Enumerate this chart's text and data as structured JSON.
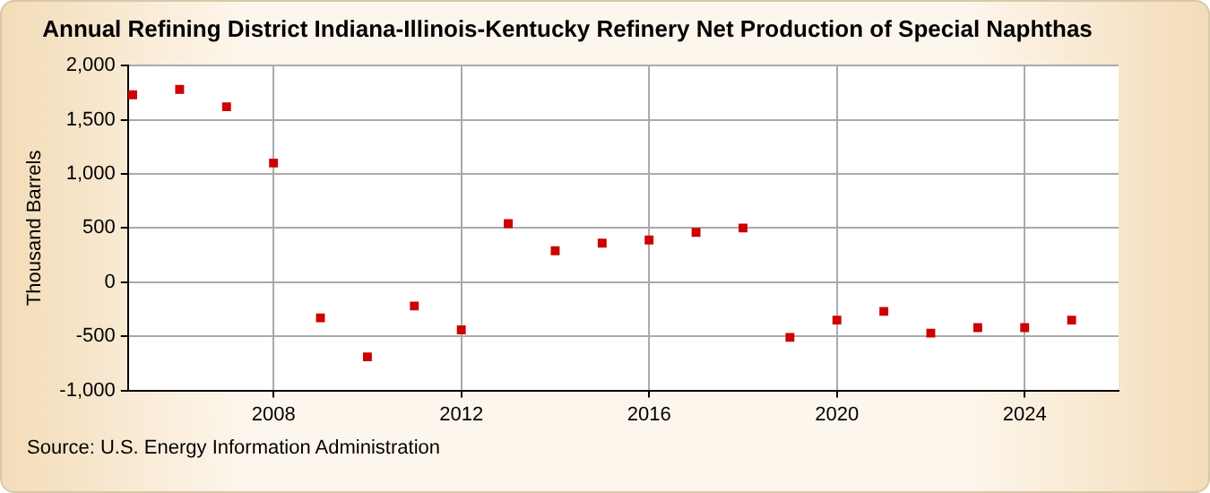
{
  "chart_data": {
    "type": "scatter",
    "title": "Annual Refining District Indiana-Illinois-Kentucky Refinery Net Production of Special Naphthas",
    "ylabel": "Thousand Barrels",
    "x": [
      2005,
      2006,
      2007,
      2008,
      2009,
      2010,
      2011,
      2012,
      2013,
      2014,
      2015,
      2016,
      2017,
      2018,
      2019,
      2020,
      2021,
      2022,
      2023,
      2024,
      2025
    ],
    "series": [
      {
        "color": "#cc0000",
        "values": [
          1730,
          1780,
          1620,
          1100,
          -330,
          -690,
          -220,
          -440,
          540,
          290,
          360,
          390,
          460,
          500,
          -510,
          -350,
          -270,
          -470,
          -420,
          -420,
          -350
        ]
      }
    ],
    "xlim": [
      2004.9,
      2026
    ],
    "xticks": [
      2008,
      2012,
      2016,
      2020,
      2024
    ],
    "ylim": [
      -1000,
      2000
    ],
    "yticks": [
      {
        "value": -1000,
        "label": "-1,000"
      },
      -500,
      0,
      500,
      {
        "value": 1000,
        "label": "1,000"
      },
      {
        "value": 1500,
        "label": "1,500"
      },
      {
        "value": 2000,
        "label": "2,000"
      }
    ],
    "grid": true,
    "legend": false,
    "marker": "square",
    "annotations": [
      "Source: U.S. Energy Information Administration"
    ]
  }
}
